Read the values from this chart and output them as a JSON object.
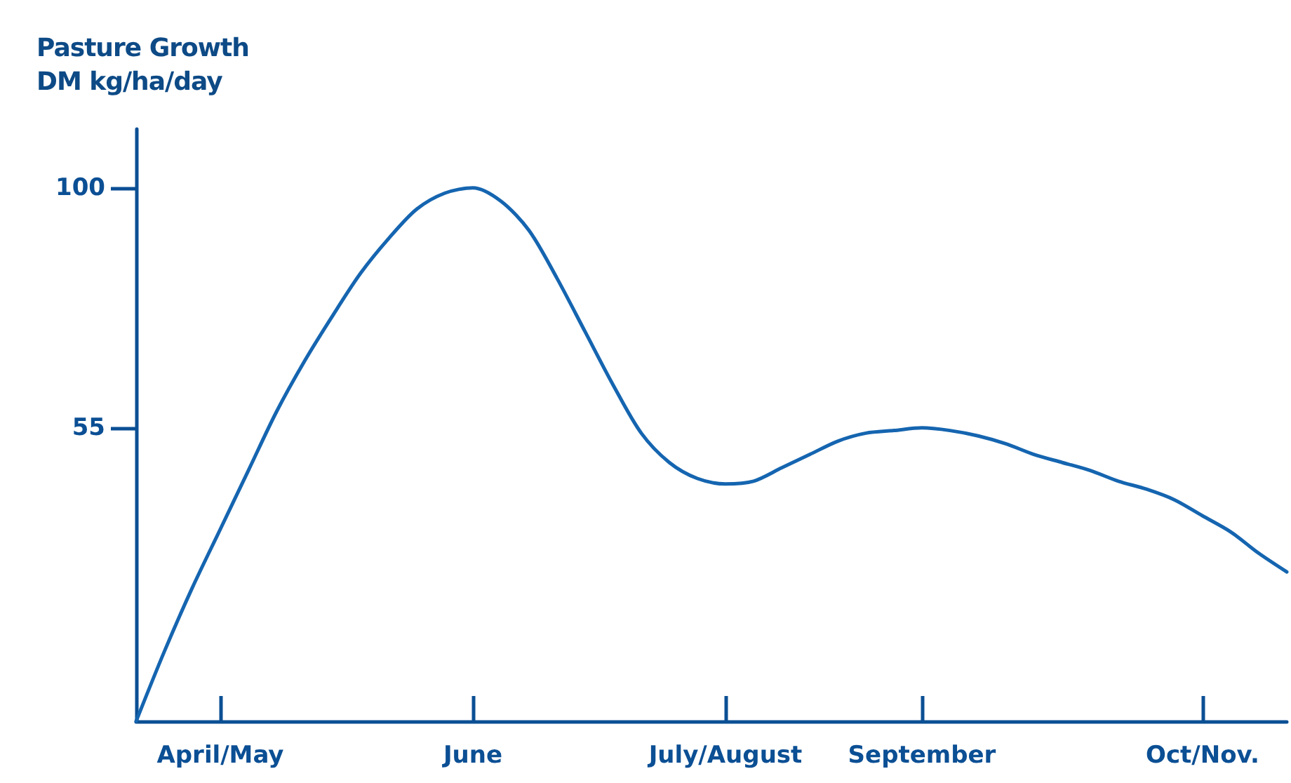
{
  "chart_data": {
    "type": "line",
    "title": "Pasture Growth",
    "ylabel": "DM kg/ha/day",
    "categories": [
      null,
      null,
      null,
      "April/May",
      null,
      null,
      null,
      null,
      null,
      null,
      null,
      null,
      "June",
      null,
      null,
      null,
      null,
      null,
      null,
      null,
      null,
      "July/August",
      null,
      null,
      null,
      null,
      null,
      null,
      "September",
      null,
      null,
      null,
      null,
      null,
      null,
      null,
      null,
      null,
      "Oct/Nov.",
      null,
      null,
      null
    ],
    "series": [
      {
        "color": "#1565b0",
        "values": [
          0,
          13,
          25,
          36,
          47,
          58,
          67.5,
          76,
          84,
          90.5,
          96,
          99,
          100,
          97.5,
          92,
          83,
          73,
          63,
          54,
          48.5,
          45.5,
          44.5,
          45,
          47.5,
          50,
          52.5,
          54,
          54.5,
          55,
          54.5,
          53.5,
          52,
          50,
          48.5,
          47,
          45,
          43.5,
          41.5,
          38.5,
          35.5,
          31.5,
          28
        ]
      }
    ],
    "ylim": [
      0,
      111
    ],
    "yticks": [
      55,
      100
    ],
    "grid": false,
    "marker": "none",
    "line_style": "solid"
  }
}
